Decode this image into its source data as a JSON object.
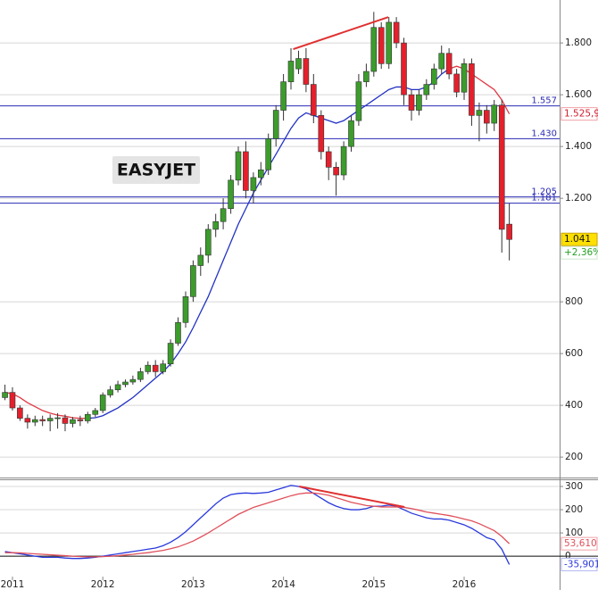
{
  "chart_data": [
    {
      "type": "candlestick",
      "title": "EASYJET",
      "x": [
        2010.917,
        2011.0,
        2011.083,
        2011.167,
        2011.25,
        2011.333,
        2011.417,
        2011.5,
        2011.583,
        2011.667,
        2011.75,
        2011.833,
        2011.917,
        2012.0,
        2012.083,
        2012.167,
        2012.25,
        2012.333,
        2012.417,
        2012.5,
        2012.583,
        2012.667,
        2012.75,
        2012.833,
        2012.917,
        2013.0,
        2013.083,
        2013.167,
        2013.25,
        2013.333,
        2013.417,
        2013.5,
        2013.583,
        2013.667,
        2013.75,
        2013.833,
        2013.917,
        2014.0,
        2014.083,
        2014.167,
        2014.25,
        2014.333,
        2014.417,
        2014.5,
        2014.583,
        2014.667,
        2014.75,
        2014.833,
        2014.917,
        2015.0,
        2015.083,
        2015.167,
        2015.25,
        2015.333,
        2015.417,
        2015.5,
        2015.583,
        2015.667,
        2015.75,
        2015.833,
        2015.917,
        2016.0,
        2016.083,
        2016.167,
        2016.25,
        2016.333,
        2016.417,
        2016.5
      ],
      "open": [
        430,
        450,
        390,
        350,
        335,
        345,
        340,
        350,
        352,
        330,
        345,
        340,
        365,
        380,
        440,
        460,
        480,
        490,
        500,
        530,
        555,
        530,
        560,
        640,
        720,
        820,
        940,
        980,
        1080,
        1110,
        1160,
        1270,
        1380,
        1230,
        1280,
        1310,
        1430,
        1540,
        1650,
        1700,
        1740,
        1640,
        1520,
        1380,
        1320,
        1290,
        1400,
        1500,
        1650,
        1690,
        1860,
        1720,
        1880,
        1800,
        1600,
        1540,
        1600,
        1640,
        1700,
        1760,
        1680,
        1610,
        1720,
        1520,
        1540,
        1490,
        1560,
        1100
      ],
      "high": [
        480,
        470,
        400,
        365,
        360,
        360,
        365,
        370,
        365,
        355,
        360,
        375,
        390,
        450,
        475,
        495,
        500,
        515,
        545,
        570,
        575,
        575,
        655,
        740,
        840,
        960,
        1010,
        1100,
        1140,
        1200,
        1290,
        1400,
        1420,
        1300,
        1340,
        1450,
        1560,
        1680,
        1780,
        1770,
        1780,
        1680,
        1540,
        1400,
        1340,
        1420,
        1520,
        1680,
        1720,
        1920,
        1880,
        1900,
        1900,
        1820,
        1620,
        1620,
        1660,
        1720,
        1790,
        1780,
        1700,
        1740,
        1740,
        1570,
        1560,
        1580,
        1580,
        1180
      ],
      "low": [
        420,
        380,
        340,
        310,
        320,
        320,
        300,
        310,
        300,
        315,
        320,
        330,
        355,
        370,
        430,
        450,
        470,
        480,
        490,
        520,
        510,
        520,
        550,
        630,
        700,
        800,
        900,
        950,
        1050,
        1080,
        1140,
        1250,
        1200,
        1180,
        1250,
        1290,
        1400,
        1500,
        1620,
        1680,
        1610,
        1490,
        1350,
        1270,
        1210,
        1270,
        1380,
        1480,
        1630,
        1670,
        1700,
        1700,
        1780,
        1560,
        1500,
        1520,
        1580,
        1620,
        1680,
        1660,
        1590,
        1580,
        1480,
        1420,
        1450,
        1460,
        990,
        960
      ],
      "close": [
        450,
        390,
        350,
        335,
        345,
        340,
        350,
        352,
        330,
        345,
        340,
        365,
        380,
        440,
        460,
        480,
        490,
        500,
        530,
        555,
        530,
        560,
        640,
        720,
        820,
        940,
        980,
        1080,
        1110,
        1160,
        1270,
        1380,
        1230,
        1280,
        1310,
        1430,
        1540,
        1650,
        1730,
        1740,
        1640,
        1520,
        1380,
        1320,
        1290,
        1400,
        1500,
        1650,
        1690,
        1860,
        1720,
        1880,
        1800,
        1600,
        1540,
        1600,
        1640,
        1700,
        1760,
        1680,
        1610,
        1720,
        1520,
        1540,
        1490,
        1560,
        1080,
        1041
      ],
      "up_color": "#3c9c2c",
      "down_color": "#e4202c",
      "moving_average": [
        {
          "color": "#e03844",
          "values": [
            450,
            445,
            430,
            410,
            395,
            380,
            370,
            362,
            358,
            352,
            350,
            350,
            null,
            null,
            null,
            null,
            null,
            null,
            null,
            null,
            null,
            null,
            null,
            null,
            null,
            null,
            null,
            null,
            null,
            null,
            null,
            null,
            null,
            null,
            null,
            null,
            null,
            null,
            null,
            null,
            null,
            null,
            null,
            null,
            null,
            null,
            null,
            null,
            null,
            null,
            null,
            null,
            null,
            null,
            null,
            null,
            null,
            null,
            null,
            1700,
            1710,
            1700,
            1680,
            1660,
            1640,
            1620,
            1580,
            1525.9
          ]
        },
        {
          "color": "#2232c4",
          "values": [
            null,
            null,
            null,
            null,
            null,
            null,
            null,
            null,
            null,
            null,
            null,
            350,
            352,
            360,
            375,
            390,
            410,
            430,
            455,
            480,
            505,
            530,
            560,
            600,
            645,
            700,
            760,
            820,
            890,
            960,
            1030,
            1100,
            1160,
            1220,
            1270,
            1320,
            1370,
            1420,
            1470,
            1510,
            1530,
            1520,
            1510,
            1500,
            1490,
            1500,
            1520,
            1540,
            1560,
            1580,
            1600,
            1620,
            1630,
            1630,
            1620,
            1620,
            1630,
            1650,
            1680,
            1700,
            null,
            null,
            null,
            null,
            null,
            null,
            null,
            null
          ]
        }
      ],
      "ma_label": {
        "value": 1525.9,
        "label": "1.525,9"
      },
      "last_price": {
        "value": 1041,
        "label": "1.041"
      },
      "change_label": "+2,36%",
      "levels": [
        {
          "value": 1557,
          "label": "1.557"
        },
        {
          "value": 1430,
          "label": "1.430"
        },
        {
          "value": 1205,
          "label": "1.205"
        },
        {
          "value": 1181,
          "label": "1.181"
        }
      ],
      "level_color": "#2a2ab4",
      "trendlines": [
        {
          "color": "#e03030",
          "x": [
            2014.108,
            2015.16
          ],
          "y": [
            1776,
            1900
          ]
        }
      ],
      "xlim": [
        2010.862,
        2017.057
      ],
      "ylim": [
        128,
        1966
      ],
      "yticks": [
        200,
        400,
        600,
        800,
        {
          "value": 1200,
          "label": "1.200"
        },
        {
          "value": 1400,
          "label": "1.400"
        },
        {
          "value": 1600,
          "label": "1.600"
        },
        {
          "value": 1800,
          "label": "1.800"
        }
      ],
      "grid": true
    },
    {
      "type": "line",
      "x": [
        2010.917,
        2011.0,
        2011.083,
        2011.167,
        2011.25,
        2011.333,
        2011.417,
        2011.5,
        2011.583,
        2011.667,
        2011.75,
        2011.833,
        2011.917,
        2012.0,
        2012.083,
        2012.167,
        2012.25,
        2012.333,
        2012.417,
        2012.5,
        2012.583,
        2012.667,
        2012.75,
        2012.833,
        2012.917,
        2013.0,
        2013.083,
        2013.167,
        2013.25,
        2013.333,
        2013.417,
        2013.5,
        2013.583,
        2013.667,
        2013.75,
        2013.833,
        2013.917,
        2014.0,
        2014.083,
        2014.167,
        2014.25,
        2014.333,
        2014.417,
        2014.5,
        2014.583,
        2014.667,
        2014.75,
        2014.833,
        2014.917,
        2015.0,
        2015.083,
        2015.167,
        2015.25,
        2015.333,
        2015.417,
        2015.5,
        2015.583,
        2015.667,
        2015.75,
        2015.833,
        2015.917,
        2016.0,
        2016.083,
        2016.167,
        2016.25,
        2016.333,
        2016.417,
        2016.5
      ],
      "series": [
        {
          "color": "#2a3adc",
          "values": [
            20,
            15,
            10,
            5,
            0,
            -5,
            -5,
            -5,
            -8,
            -10,
            -10,
            -8,
            -5,
            0,
            5,
            10,
            15,
            20,
            25,
            30,
            35,
            45,
            60,
            80,
            105,
            135,
            165,
            195,
            225,
            250,
            265,
            270,
            272,
            270,
            272,
            275,
            285,
            295,
            305,
            300,
            290,
            270,
            250,
            230,
            215,
            205,
            200,
            200,
            205,
            215,
            215,
            220,
            215,
            200,
            185,
            175,
            165,
            160,
            160,
            155,
            145,
            135,
            120,
            100,
            80,
            70,
            30,
            -35.901
          ]
        },
        {
          "color": "#e0505a",
          "values": [
            15,
            15,
            14,
            12,
            10,
            8,
            6,
            4,
            2,
            0,
            -2,
            -3,
            -3,
            -2,
            0,
            2,
            5,
            8,
            12,
            15,
            20,
            25,
            32,
            40,
            52,
            65,
            82,
            100,
            120,
            140,
            160,
            180,
            195,
            210,
            220,
            230,
            240,
            250,
            260,
            268,
            272,
            272,
            268,
            262,
            252,
            242,
            232,
            225,
            218,
            215,
            212,
            212,
            212,
            210,
            205,
            198,
            190,
            185,
            180,
            175,
            168,
            160,
            152,
            140,
            125,
            110,
            85,
            53.61
          ]
        }
      ],
      "end_labels": [
        {
          "value": -35.901,
          "label": "-35,901"
        },
        {
          "value": 53.61,
          "label": "53,610"
        }
      ],
      "trendlines": [
        {
          "color": "#e03030",
          "x": [
            2014.175,
            2015.34
          ],
          "y": [
            300,
            212
          ]
        }
      ],
      "xlim": [
        2010.862,
        2017.057
      ],
      "ylim": [
        -88,
        327
      ],
      "xticks": [
        2011,
        2012,
        2013,
        2014,
        2015,
        2016
      ],
      "yticks": [
        0,
        100,
        200,
        300
      ],
      "grid": true
    }
  ]
}
